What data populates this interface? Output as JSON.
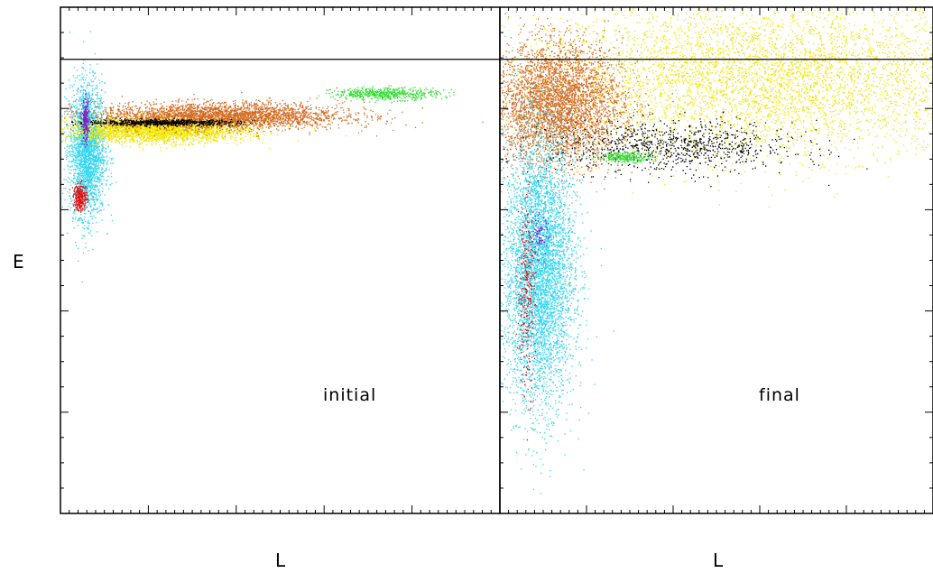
{
  "chart_data": [
    {
      "type": "scatter",
      "panel_label": "initial",
      "xlabel": "L",
      "ylabel": "E",
      "xlim": [
        0,
        1
      ],
      "ylim": [
        0,
        1
      ],
      "reference_line_y": 0.897,
      "grid": false,
      "series": [
        {
          "color": "#33d6f0",
          "cluster": {
            "cx": 0.06,
            "cy": 0.72,
            "sx": 0.02,
            "sy": 0.065,
            "n": 2600
          }
        },
        {
          "color": "#f2e600",
          "cluster": {
            "cx": 0.22,
            "cy": 0.758,
            "sx": 0.1,
            "sy": 0.012,
            "n": 2800
          }
        },
        {
          "color": "#d2691e",
          "cluster": {
            "cx": 0.36,
            "cy": 0.786,
            "sx": 0.14,
            "sy": 0.013,
            "n": 3200
          }
        },
        {
          "color": "#33dd33",
          "cluster": {
            "cx": 0.74,
            "cy": 0.83,
            "sx": 0.06,
            "sy": 0.006,
            "n": 550
          }
        },
        {
          "color": "#000000",
          "cluster": {
            "cx": 0.23,
            "cy": 0.773,
            "sx": 0.085,
            "sy": 0.003,
            "n": 750
          }
        },
        {
          "color": "#7a22c8",
          "cluster": {
            "cx": 0.056,
            "cy": 0.775,
            "sx": 0.004,
            "sy": 0.022,
            "n": 220
          }
        },
        {
          "color": "#e01010",
          "cluster": {
            "cx": 0.044,
            "cy": 0.625,
            "sx": 0.008,
            "sy": 0.013,
            "n": 280
          }
        }
      ]
    },
    {
      "type": "scatter",
      "panel_label": "final",
      "xlabel": "L",
      "ylabel": "",
      "xlim": [
        0,
        1
      ],
      "ylim": [
        0,
        1
      ],
      "reference_line_y": 0.897,
      "grid": false,
      "series": [
        {
          "color": "#f2e600",
          "cluster": {
            "cx": 0.6,
            "cy": 0.86,
            "sx": 0.28,
            "sy": 0.075,
            "n": 9000
          }
        },
        {
          "color": "#d2691e",
          "cluster": {
            "cx": 0.13,
            "cy": 0.81,
            "sx": 0.075,
            "sy": 0.06,
            "n": 4200
          }
        },
        {
          "color": "#33d6f0",
          "cluster": {
            "cx": 0.09,
            "cy": 0.48,
            "sx": 0.04,
            "sy": 0.13,
            "n": 5200
          }
        },
        {
          "color": "#000000",
          "cluster": {
            "cx": 0.4,
            "cy": 0.725,
            "sx": 0.14,
            "sy": 0.025,
            "n": 950
          }
        },
        {
          "color": "#33dd33",
          "cluster": {
            "cx": 0.29,
            "cy": 0.705,
            "sx": 0.03,
            "sy": 0.005,
            "n": 260
          }
        },
        {
          "color": "#e01010",
          "cluster": {
            "cx": 0.06,
            "cy": 0.44,
            "sx": 0.01,
            "sy": 0.1,
            "n": 320
          }
        },
        {
          "color": "#7a22c8",
          "cluster": {
            "cx": 0.09,
            "cy": 0.55,
            "sx": 0.01,
            "sy": 0.02,
            "n": 80
          }
        }
      ]
    }
  ]
}
